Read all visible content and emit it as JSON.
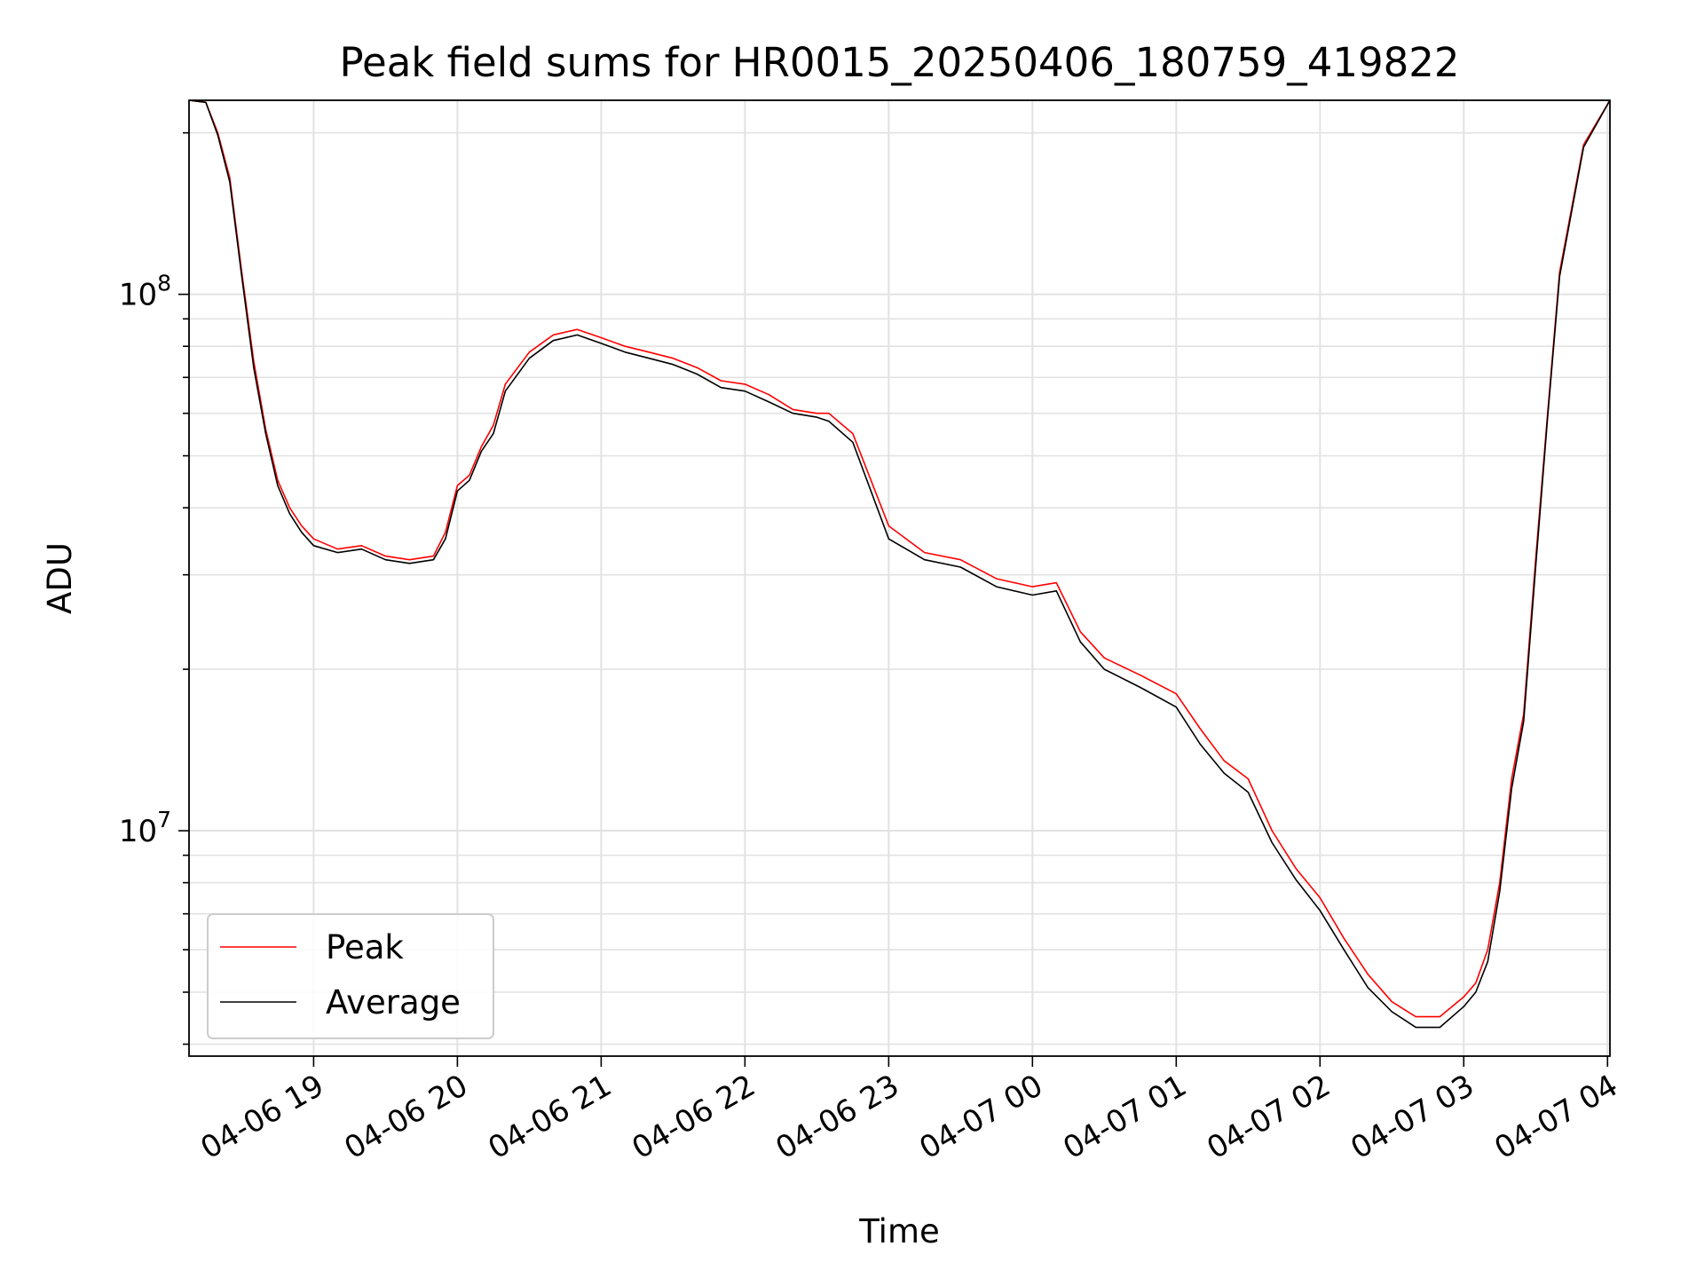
{
  "chart_data": {
    "type": "line",
    "title": "Peak field sums for HR0015_20250406_180759_419822",
    "xlabel": "Time",
    "ylabel": "ADU",
    "yscale": "log",
    "ylim": [
      3800000,
      230000000
    ],
    "xlim": [
      "2025-04-06 18:08",
      "2025-04-07 04:01"
    ],
    "grid": true,
    "legend_position": "lower-left",
    "x_ticks": [
      "2025-04-06 19:00",
      "2025-04-06 20:00",
      "2025-04-06 21:00",
      "2025-04-06 22:00",
      "2025-04-06 23:00",
      "2025-04-07 00:00",
      "2025-04-07 01:00",
      "2025-04-07 02:00",
      "2025-04-07 03:00",
      "2025-04-07 04:00"
    ],
    "x_tick_labels": [
      "04-06 19",
      "04-06 20",
      "04-06 21",
      "04-06 22",
      "04-06 23",
      "04-07 00",
      "04-07 01",
      "04-07 02",
      "04-07 03",
      "04-07 04"
    ],
    "y_ticks": [
      10000000,
      100000000
    ],
    "y_tick_labels": [
      {
        "base": "10",
        "exp": "7"
      },
      {
        "base": "10",
        "exp": "8"
      }
    ],
    "x": [
      "2025-04-06 18:08",
      "2025-04-06 18:15",
      "2025-04-06 18:20",
      "2025-04-06 18:25",
      "2025-04-06 18:30",
      "2025-04-06 18:35",
      "2025-04-06 18:40",
      "2025-04-06 18:45",
      "2025-04-06 18:50",
      "2025-04-06 18:55",
      "2025-04-06 19:00",
      "2025-04-06 19:10",
      "2025-04-06 19:20",
      "2025-04-06 19:30",
      "2025-04-06 19:40",
      "2025-04-06 19:50",
      "2025-04-06 19:55",
      "2025-04-06 20:00",
      "2025-04-06 20:05",
      "2025-04-06 20:10",
      "2025-04-06 20:15",
      "2025-04-06 20:20",
      "2025-04-06 20:30",
      "2025-04-06 20:40",
      "2025-04-06 20:50",
      "2025-04-06 21:00",
      "2025-04-06 21:10",
      "2025-04-06 21:20",
      "2025-04-06 21:30",
      "2025-04-06 21:40",
      "2025-04-06 21:50",
      "2025-04-06 22:00",
      "2025-04-06 22:10",
      "2025-04-06 22:20",
      "2025-04-06 22:30",
      "2025-04-06 22:35",
      "2025-04-06 22:45",
      "2025-04-06 23:00",
      "2025-04-06 23:15",
      "2025-04-06 23:30",
      "2025-04-06 23:45",
      "2025-04-07 00:00",
      "2025-04-07 00:10",
      "2025-04-07 00:20",
      "2025-04-07 00:30",
      "2025-04-07 00:45",
      "2025-04-07 01:00",
      "2025-04-07 01:10",
      "2025-04-07 01:20",
      "2025-04-07 01:30",
      "2025-04-07 01:40",
      "2025-04-07 01:50",
      "2025-04-07 02:00",
      "2025-04-07 02:10",
      "2025-04-07 02:20",
      "2025-04-07 02:30",
      "2025-04-07 02:40",
      "2025-04-07 02:50",
      "2025-04-07 03:00",
      "2025-04-07 03:05",
      "2025-04-07 03:10",
      "2025-04-07 03:15",
      "2025-04-07 03:20",
      "2025-04-07 03:25",
      "2025-04-07 03:30",
      "2025-04-07 03:35",
      "2025-04-07 03:40",
      "2025-04-07 03:50",
      "2025-04-07 04:01"
    ],
    "series": [
      {
        "name": "Peak",
        "color": "#ff0000",
        "values": [
          230000000,
          228000000,
          200000000,
          165000000,
          110000000,
          75000000,
          56000000,
          45000000,
          40000000,
          37000000,
          35000000,
          33500000,
          34000000,
          32500000,
          32000000,
          32500000,
          36000000,
          44000000,
          46000000,
          52000000,
          57000000,
          68000000,
          78000000,
          84000000,
          86000000,
          83000000,
          80000000,
          78000000,
          76000000,
          73000000,
          69000000,
          68000000,
          65000000,
          61000000,
          60000000,
          60000000,
          55000000,
          37000000,
          33000000,
          32000000,
          29500000,
          28500000,
          29000000,
          23500000,
          21000000,
          19500000,
          18000000,
          15500000,
          13500000,
          12500000,
          10000000,
          8500000,
          7500000,
          6300000,
          5400000,
          4800000,
          4500000,
          4500000,
          4900000,
          5200000,
          6000000,
          8000000,
          12500000,
          16500000,
          32000000,
          60000000,
          110000000,
          190000000,
          230000000
        ]
      },
      {
        "name": "Average",
        "color": "#000000",
        "values": [
          230000000,
          228000000,
          198000000,
          162000000,
          108000000,
          73000000,
          55000000,
          44000000,
          39000000,
          36000000,
          34000000,
          33000000,
          33500000,
          32000000,
          31500000,
          32000000,
          35000000,
          43000000,
          45000000,
          51000000,
          55000000,
          66000000,
          76000000,
          82000000,
          84000000,
          81000000,
          78000000,
          76000000,
          74000000,
          71000000,
          67000000,
          66000000,
          63000000,
          60000000,
          59000000,
          58000000,
          53000000,
          35000000,
          32000000,
          31000000,
          28500000,
          27500000,
          28000000,
          22500000,
          20000000,
          18500000,
          17000000,
          14500000,
          12800000,
          11800000,
          9500000,
          8100000,
          7100000,
          6000000,
          5100000,
          4600000,
          4300000,
          4300000,
          4700000,
          5000000,
          5700000,
          7700000,
          12000000,
          16000000,
          31000000,
          59000000,
          108000000,
          188000000,
          230000000
        ]
      }
    ]
  },
  "legend": [
    {
      "label": "Peak",
      "color": "#ff0000"
    },
    {
      "label": "Average",
      "color": "#000000"
    }
  ]
}
